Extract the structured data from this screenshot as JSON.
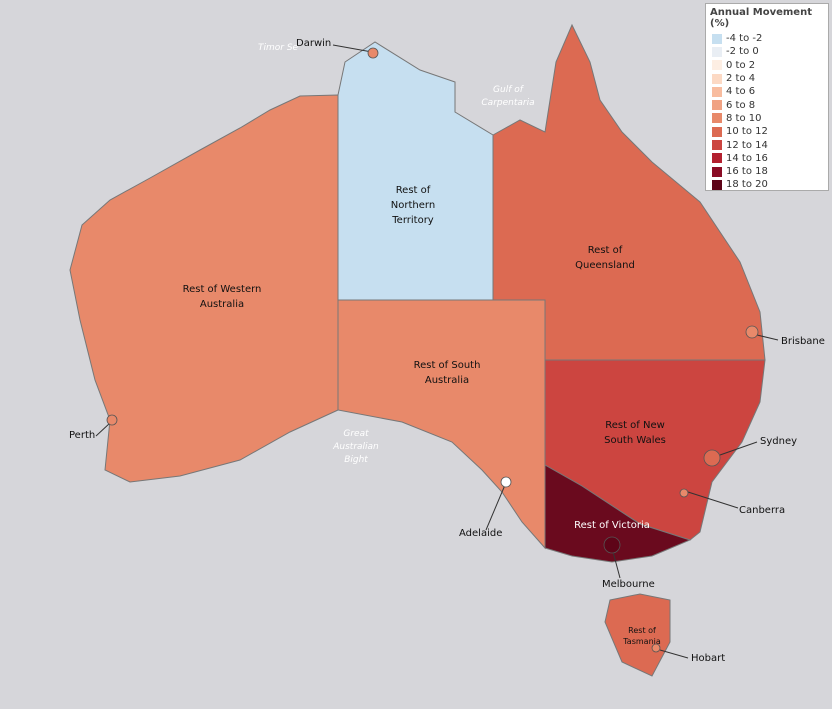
{
  "legend": {
    "title": "Annual Movement (%)",
    "items": [
      {
        "label": "-4 to -2",
        "color": "#c6dff0"
      },
      {
        "label": "-2 to 0",
        "color": "#e9eef4"
      },
      {
        "label": "0 to 2",
        "color": "#fdeee3"
      },
      {
        "label": "2 to 4",
        "color": "#fcd9c4"
      },
      {
        "label": "4 to 6",
        "color": "#f8bc9f"
      },
      {
        "label": "6 to 8",
        "color": "#f0a283"
      },
      {
        "label": "8 to 10",
        "color": "#e8896a"
      },
      {
        "label": "10 to 12",
        "color": "#dc6a52"
      },
      {
        "label": "12 to 14",
        "color": "#cc4540"
      },
      {
        "label": "14 to 16",
        "color": "#b3202f"
      },
      {
        "label": "16 to 18",
        "color": "#8a0c25"
      },
      {
        "label": "18 to 20",
        "color": "#5e0418"
      }
    ]
  },
  "regions": [
    {
      "label": "Rest of Western Australia",
      "color": "#e8896a"
    },
    {
      "label": "Rest of Northern Territory",
      "color": "#c6dff0"
    },
    {
      "label": "Rest of Queensland",
      "color": "#dc6a52"
    },
    {
      "label": "Rest of South Australia",
      "color": "#e8896a"
    },
    {
      "label": "Rest of New South Wales",
      "color": "#cc4540"
    },
    {
      "label": "Rest of Victoria",
      "color": "#6a0a1e"
    },
    {
      "label": "Rest of Tasmania",
      "color": "#dc6a52"
    }
  ],
  "cities": [
    {
      "label": "Darwin"
    },
    {
      "label": "Brisbane"
    },
    {
      "label": "Sydney"
    },
    {
      "label": "Canberra"
    },
    {
      "label": "Melbourne"
    },
    {
      "label": "Adelaide"
    },
    {
      "label": "Perth"
    },
    {
      "label": "Hobart"
    }
  ],
  "water_labels": [
    "Timor Se",
    "Gulf of Carpentaria",
    "Great Australian Bight"
  ]
}
